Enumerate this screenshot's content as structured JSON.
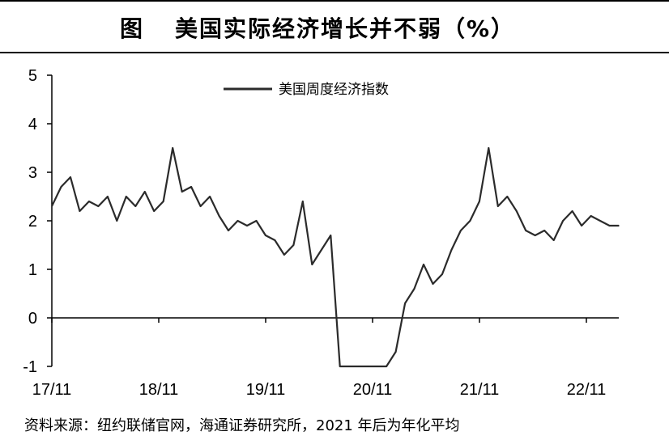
{
  "title": {
    "label": "图",
    "text": "美国实际经济增长并不弱（%）"
  },
  "source": "资料来源：纽约联储官网，海通证券研究所，2021 年后为年化平均",
  "chart_data": {
    "type": "line",
    "title": "美国实际经济增长并不弱（%）",
    "xlabel": "",
    "ylabel": "",
    "ylim": [
      -1,
      5
    ],
    "yticks": [
      "5",
      "4",
      "3",
      "2",
      "1",
      "0",
      "-1"
    ],
    "xticks": [
      "17/11",
      "18/11",
      "19/11",
      "20/11",
      "21/11",
      "22/11"
    ],
    "legend": "top-center",
    "series": [
      {
        "name": "美国周度经济指数",
        "color": "#2b2b2b",
        "x": [
          "17/11",
          "17/12",
          "18/01",
          "18/02",
          "18/03",
          "18/04",
          "18/05",
          "18/06",
          "18/07",
          "18/08",
          "18/09",
          "18/10",
          "18/11",
          "18/12",
          "19/01",
          "19/02",
          "19/03",
          "19/04",
          "19/05",
          "19/06",
          "19/07",
          "19/08",
          "19/09",
          "19/10",
          "19/11",
          "19/12",
          "20/01",
          "20/02",
          "20/03",
          "20/04",
          "20/05",
          "20/06",
          "20/07",
          "20/08",
          "20/09",
          "20/10",
          "20/11",
          "20/12",
          "21/01",
          "21/02",
          "21/03",
          "21/04",
          "21/05",
          "21/06",
          "21/07",
          "21/08",
          "21/09",
          "21/10",
          "21/11",
          "21/12",
          "22/01",
          "22/02",
          "22/03",
          "22/04",
          "22/05",
          "22/06",
          "22/07",
          "22/08",
          "22/09",
          "22/10",
          "22/11",
          "22/12"
        ],
        "values": [
          2.3,
          2.7,
          2.9,
          2.2,
          2.4,
          2.3,
          2.5,
          2.0,
          2.5,
          2.3,
          2.6,
          2.2,
          2.4,
          3.5,
          2.6,
          2.7,
          2.3,
          2.5,
          2.1,
          1.8,
          2.0,
          1.9,
          2.0,
          1.7,
          1.6,
          1.3,
          1.5,
          2.4,
          1.1,
          1.4,
          1.7,
          -1.0,
          -1.0,
          -1.0,
          -1.0,
          -1.0,
          -1.0,
          -0.7,
          0.3,
          0.6,
          1.1,
          0.7,
          0.9,
          1.4,
          1.8,
          2.0,
          2.4,
          3.5,
          2.3,
          2.5,
          2.2,
          1.8,
          1.7,
          1.8,
          1.6,
          2.0,
          2.2,
          1.9,
          2.1,
          2.0,
          1.9,
          1.9
        ]
      }
    ]
  }
}
